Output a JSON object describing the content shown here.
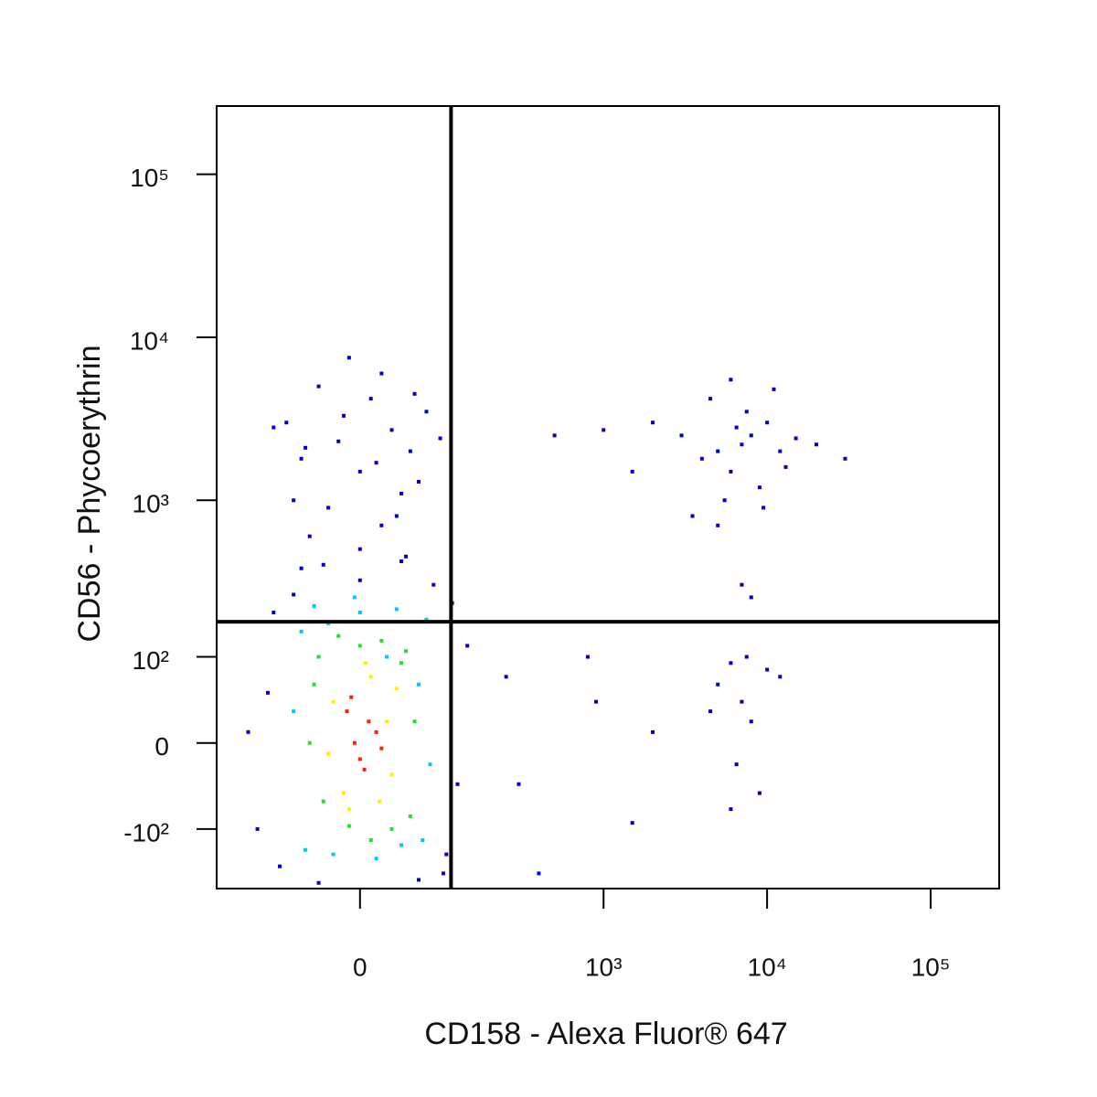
{
  "chart_data": {
    "type": "scatter",
    "x_label": "CD158 - Alexa Fluor® 647",
    "y_label": "CD56 - Phycoerythrin",
    "scale": "biexponential",
    "xlim": [
      -240,
      262144
    ],
    "ylim": [
      -250,
      262144
    ],
    "xticks": [
      0,
      {
        "value": 1000,
        "label": "10³"
      },
      {
        "value": 10000,
        "label": "10⁴"
      },
      {
        "value": 100000,
        "label": "10⁵"
      }
    ],
    "yticks": [
      {
        "value": -100,
        "label": "-10²"
      },
      0,
      {
        "value": 100,
        "label": "10²"
      },
      {
        "value": 1000,
        "label": "10³"
      },
      {
        "value": 10000,
        "label": "10⁴"
      },
      {
        "value": 100000,
        "label": "10⁵"
      }
    ],
    "quadrant_x": 108,
    "quadrant_y": 174,
    "series": [
      {
        "color": "#0000cc",
        "x": [
          -90,
          95,
          -110,
          120,
          -70,
          80,
          -130,
          140,
          -100,
          60,
          -40,
          110,
          -150,
          100,
          0,
          -60,
          40,
          -50,
          20,
          -30,
          40,
          0,
          -60,
          50,
          -20,
          30,
          -80,
          70,
          10,
          -40,
          20,
          -10,
          60,
          -70,
          90,
          -100,
          0,
          35,
          -15,
          55,
          -55,
          15,
          -35,
          45,
          5000,
          7000,
          6000,
          8000,
          4000,
          10000,
          9000,
          6500,
          3000,
          12000,
          5500,
          7500,
          15000,
          2000,
          1500,
          20000,
          5000,
          7000,
          8000,
          1000,
          500,
          30000,
          4500,
          11000,
          6000,
          13000,
          3500,
          9500,
          5000,
          7000,
          6000,
          8000,
          4500,
          10000,
          6500,
          9000,
          7500,
          12000,
          6000,
          300,
          250,
          1500,
          800,
          400,
          2000,
          900
        ],
        "y": [
          -180,
          -200,
          50,
          -40,
          260,
          300,
          -100,
          120,
          200,
          -220,
          -230,
          230,
          10,
          -150,
          320,
          380,
          420,
          600,
          700,
          900,
          1100,
          1500,
          1800,
          2000,
          2300,
          2700,
          3000,
          3500,
          4200,
          5000,
          6000,
          7500,
          1300,
          1000,
          2400,
          2800,
          500,
          800,
          3300,
          4500,
          2100,
          1700,
          400,
          450,
          2000,
          2200,
          1500,
          2500,
          1800,
          3000,
          1200,
          2800,
          2500,
          2000,
          1000,
          3500,
          2400,
          3000,
          1500,
          2200,
          700,
          300,
          250,
          2700,
          2500,
          1800,
          4200,
          4800,
          5500,
          1600,
          800,
          900,
          60,
          40,
          90,
          20,
          30,
          80,
          -20,
          -50,
          100,
          70,
          -70,
          -40,
          70,
          -90,
          100,
          -200,
          10,
          40
        ]
      },
      {
        "color": "#00c8ff",
        "x": [
          -60,
          65,
          -55,
          70,
          0,
          -25,
          35,
          75,
          -70,
          15,
          60,
          -45,
          25,
          -5,
          40,
          -30
        ],
        "y": [
          150,
          -120,
          -140,
          180,
          200,
          -150,
          210,
          -20,
          30,
          -160,
          60,
          220,
          100,
          250,
          -130,
          170
        ]
      },
      {
        "color": "#22dd33",
        "x": [
          -45,
          50,
          -35,
          40,
          0,
          -20,
          30,
          55,
          -50,
          10,
          45,
          -40,
          20,
          -10
        ],
        "y": [
          60,
          -80,
          -60,
          90,
          120,
          140,
          -100,
          20,
          0,
          -120,
          110,
          100,
          130,
          -95
        ]
      },
      {
        "color": "#ffee00",
        "x": [
          -25,
          30,
          10,
          -15,
          35,
          -30,
          5,
          25,
          -10,
          18
        ],
        "y": [
          40,
          -30,
          70,
          -50,
          55,
          -10,
          90,
          20,
          -70,
          -60
        ]
      },
      {
        "color": "#ff2000",
        "x": [
          -5,
          8,
          0,
          15,
          -12,
          4,
          20,
          -8
        ],
        "y": [
          0,
          20,
          -15,
          10,
          30,
          -25,
          -5,
          45
        ]
      }
    ]
  }
}
